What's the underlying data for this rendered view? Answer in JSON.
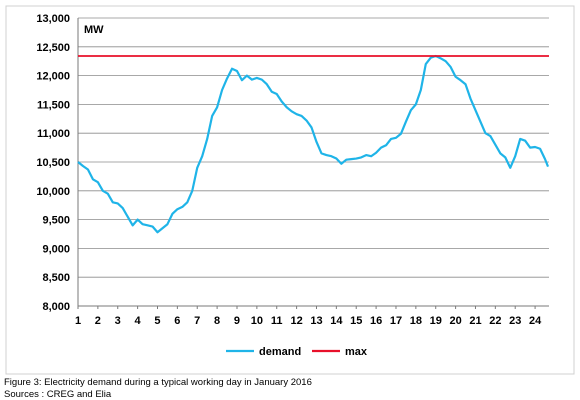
{
  "chart_data": {
    "type": "line",
    "unit_label": "MW",
    "xlabel": "",
    "ylabel": "",
    "x_ticks": [
      "1",
      "2",
      "3",
      "4",
      "5",
      "6",
      "7",
      "8",
      "9",
      "10",
      "11",
      "12",
      "13",
      "14",
      "15",
      "16",
      "17",
      "18",
      "19",
      "20",
      "21",
      "22",
      "23",
      "24"
    ],
    "y_ticks": [
      "8,000",
      "8,500",
      "9,000",
      "9,500",
      "10,000",
      "10,500",
      "11,000",
      "11,500",
      "12,000",
      "12,500",
      "13,000"
    ],
    "ylim": [
      8000,
      13000
    ],
    "xlim": [
      1,
      24.7
    ],
    "grid": true,
    "legend_position": "bottom-center",
    "series": [
      {
        "name": "demand",
        "color": "#1fb4e8",
        "points": [
          [
            1.0,
            10500
          ],
          [
            1.25,
            10430
          ],
          [
            1.5,
            10370
          ],
          [
            1.75,
            10200
          ],
          [
            2.0,
            10150
          ],
          [
            2.25,
            10000
          ],
          [
            2.5,
            9950
          ],
          [
            2.75,
            9800
          ],
          [
            3.0,
            9780
          ],
          [
            3.25,
            9700
          ],
          [
            3.5,
            9550
          ],
          [
            3.75,
            9400
          ],
          [
            4.0,
            9500
          ],
          [
            4.25,
            9420
          ],
          [
            4.5,
            9400
          ],
          [
            4.75,
            9380
          ],
          [
            5.0,
            9280
          ],
          [
            5.25,
            9350
          ],
          [
            5.5,
            9420
          ],
          [
            5.75,
            9600
          ],
          [
            6.0,
            9680
          ],
          [
            6.25,
            9720
          ],
          [
            6.5,
            9800
          ],
          [
            6.75,
            10000
          ],
          [
            7.0,
            10400
          ],
          [
            7.25,
            10600
          ],
          [
            7.5,
            10900
          ],
          [
            7.75,
            11300
          ],
          [
            8.0,
            11450
          ],
          [
            8.25,
            11750
          ],
          [
            8.5,
            11950
          ],
          [
            8.75,
            12120
          ],
          [
            9.0,
            12080
          ],
          [
            9.25,
            11920
          ],
          [
            9.5,
            12000
          ],
          [
            9.75,
            11930
          ],
          [
            10.0,
            11960
          ],
          [
            10.25,
            11930
          ],
          [
            10.5,
            11850
          ],
          [
            10.75,
            11720
          ],
          [
            11.0,
            11680
          ],
          [
            11.25,
            11550
          ],
          [
            11.5,
            11450
          ],
          [
            11.75,
            11380
          ],
          [
            12.0,
            11330
          ],
          [
            12.25,
            11300
          ],
          [
            12.5,
            11220
          ],
          [
            12.75,
            11100
          ],
          [
            13.0,
            10850
          ],
          [
            13.25,
            10650
          ],
          [
            13.5,
            10620
          ],
          [
            13.75,
            10600
          ],
          [
            14.0,
            10560
          ],
          [
            14.25,
            10470
          ],
          [
            14.5,
            10540
          ],
          [
            14.75,
            10550
          ],
          [
            15.0,
            10560
          ],
          [
            15.25,
            10580
          ],
          [
            15.5,
            10620
          ],
          [
            15.75,
            10600
          ],
          [
            16.0,
            10660
          ],
          [
            16.25,
            10750
          ],
          [
            16.5,
            10790
          ],
          [
            16.75,
            10900
          ],
          [
            17.0,
            10920
          ],
          [
            17.25,
            10990
          ],
          [
            17.5,
            11200
          ],
          [
            17.75,
            11400
          ],
          [
            18.0,
            11500
          ],
          [
            18.25,
            11750
          ],
          [
            18.5,
            12200
          ],
          [
            18.75,
            12310
          ],
          [
            19.0,
            12340
          ],
          [
            19.25,
            12300
          ],
          [
            19.5,
            12250
          ],
          [
            19.75,
            12150
          ],
          [
            20.0,
            11980
          ],
          [
            20.25,
            11920
          ],
          [
            20.5,
            11850
          ],
          [
            20.75,
            11600
          ],
          [
            21.0,
            11400
          ],
          [
            21.25,
            11200
          ],
          [
            21.5,
            11000
          ],
          [
            21.75,
            10950
          ],
          [
            22.0,
            10800
          ],
          [
            22.25,
            10650
          ],
          [
            22.5,
            10580
          ],
          [
            22.75,
            10400
          ],
          [
            23.0,
            10600
          ],
          [
            23.25,
            10900
          ],
          [
            23.5,
            10870
          ],
          [
            23.75,
            10750
          ],
          [
            24.0,
            10760
          ],
          [
            24.25,
            10730
          ],
          [
            24.5,
            10550
          ],
          [
            24.65,
            10420
          ]
        ]
      },
      {
        "name": "max",
        "color": "#e8102a",
        "points": [
          [
            1.0,
            12340
          ],
          [
            24.7,
            12340
          ]
        ]
      }
    ]
  },
  "caption": {
    "line1": "Figure 3:  Electricity demand during a typical working day in January 2016",
    "line2": "Sources : CREG and Elia"
  }
}
